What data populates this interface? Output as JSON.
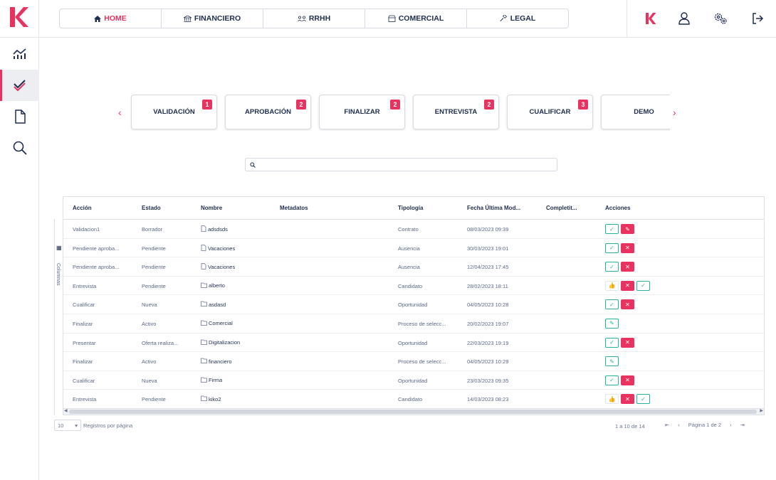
{
  "nav": {
    "tabs": [
      {
        "label": "HOME",
        "icon": "home-icon",
        "active": true
      },
      {
        "label": "FINANCIERO",
        "icon": "bank-icon"
      },
      {
        "label": "RRHH",
        "icon": "people-icon"
      },
      {
        "label": "COMERCIAL",
        "icon": "shop-icon"
      },
      {
        "label": "LEGAL",
        "icon": "gavel-icon"
      }
    ]
  },
  "topright_icons": [
    "brand-k-icon",
    "user-icon",
    "settings-icon",
    "logout-icon"
  ],
  "sidebar": {
    "items": [
      "analytics-icon",
      "tasks-check-icon",
      "document-icon",
      "search-icon"
    ]
  },
  "workflow": {
    "cards": [
      {
        "label": "VALIDACIÓN",
        "badge": "1"
      },
      {
        "label": "APROBACIÓN",
        "badge": "2"
      },
      {
        "label": "FINALIZAR",
        "badge": "2"
      },
      {
        "label": "ENTREVISTA",
        "badge": "2"
      },
      {
        "label": "CUALIFICAR",
        "badge": "3"
      },
      {
        "label": "DEMO",
        "badge": ""
      }
    ]
  },
  "search": {
    "placeholder": ""
  },
  "table": {
    "columns": [
      "Acción",
      "Estado",
      "Nombre",
      "Metadatos",
      "Tipología",
      "Fecha Última Mod...",
      "Completit...",
      "Acciones"
    ],
    "side_label": "Columnas",
    "rows": [
      {
        "accion": "Validacion1",
        "estado": "Borrador",
        "nombre": "adsdsds",
        "tipo_icon": "file",
        "tipologia": "Contrato",
        "fecha": "08/03/2023 09:39",
        "completitud": "",
        "acciones": [
          "ok",
          "edit"
        ]
      },
      {
        "accion": "Pendiente aproba...",
        "estado": "Pendiente",
        "nombre": "Vacaciones",
        "tipo_icon": "file",
        "tipologia": "Ausencia",
        "fecha": "30/03/2023 19:01",
        "completitud": "",
        "acciones": [
          "ok",
          "no"
        ]
      },
      {
        "accion": "Pendiente aproba...",
        "estado": "Pendiente",
        "nombre": "Vacaciones",
        "tipo_icon": "file",
        "tipologia": "Ausencia",
        "fecha": "12/04/2023 17:45",
        "completitud": "",
        "acciones": [
          "ok",
          "no"
        ]
      },
      {
        "accion": "Entrevista",
        "estado": "Pendiente",
        "nombre": "alberto",
        "tipo_icon": "folder",
        "tipologia": "Candidato",
        "fecha": "28/02/2023 18:11",
        "completitud": "cross",
        "acciones": [
          "thumb",
          "no",
          "ok"
        ]
      },
      {
        "accion": "Cualificar",
        "estado": "Nueva",
        "nombre": "asdasd",
        "tipo_icon": "folder",
        "tipologia": "Oportunidad",
        "fecha": "04/05/2023 10:28",
        "completitud": "check",
        "acciones": [
          "ok",
          "no"
        ]
      },
      {
        "accion": "Finalizar",
        "estado": "Activo",
        "nombre": "Comercial",
        "tipo_icon": "folder",
        "tipologia": "Proceso de selecc...",
        "fecha": "20/02/2023 19:07",
        "completitud": "check",
        "acciones": [
          "pencil"
        ]
      },
      {
        "accion": "Presentar",
        "estado": "Oferta realiza...",
        "nombre": "Digitalizacion",
        "tipo_icon": "folder",
        "tipologia": "Oportunidad",
        "fecha": "22/03/2023 19:19",
        "completitud": "check",
        "acciones": [
          "ok",
          "no"
        ]
      },
      {
        "accion": "Finalizar",
        "estado": "Activo",
        "nombre": "financiero",
        "tipo_icon": "folder",
        "tipologia": "Proceso de selecc...",
        "fecha": "04/05/2023 10:29",
        "completitud": "check",
        "acciones": [
          "pencil"
        ]
      },
      {
        "accion": "Cualificar",
        "estado": "Nueva",
        "nombre": "Firma",
        "tipo_icon": "folder",
        "tipologia": "Oportunidad",
        "fecha": "23/03/2023 09:35",
        "completitud": "check",
        "acciones": [
          "ok",
          "no"
        ]
      },
      {
        "accion": "Entrevista",
        "estado": "Pendiente",
        "nombre": "kiko2",
        "tipo_icon": "folder",
        "tipologia": "Candidato",
        "fecha": "14/03/2023 08:23",
        "completitud": "check",
        "acciones": [
          "thumb",
          "no",
          "ok"
        ]
      }
    ]
  },
  "pager": {
    "page_size": "10",
    "page_size_label": "Registros por página",
    "range": "1 a 10 de 14",
    "page_info": "Página 1 de 2"
  },
  "colors": {
    "accent": "#e8325f",
    "teal": "#27b39c",
    "navy": "#1f2d4e"
  }
}
